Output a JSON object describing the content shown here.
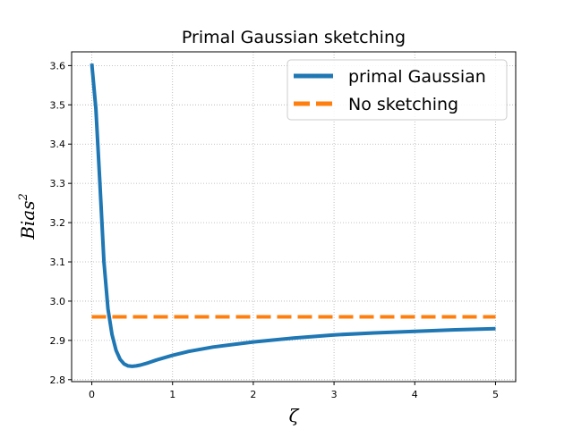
{
  "chart_data": {
    "type": "line",
    "title": "Primal Gaussian sketching",
    "xlabel": "ζ",
    "ylabel_base": "Bias",
    "ylabel_sup": "2",
    "xlim": [
      -0.25,
      5.25
    ],
    "ylim": [
      2.795,
      3.635
    ],
    "xticks": [
      0,
      1,
      2,
      3,
      4,
      5
    ],
    "xtick_labels": [
      "0",
      "1",
      "2",
      "3",
      "4",
      "5"
    ],
    "yticks": [
      2.8,
      2.9,
      3.0,
      3.1,
      3.2,
      3.3,
      3.4,
      3.5,
      3.6
    ],
    "ytick_labels": [
      "2.8",
      "2.9",
      "3.0",
      "3.1",
      "3.2",
      "3.3",
      "3.4",
      "3.5",
      "3.6"
    ],
    "grid": true,
    "legend_position": "top-right",
    "series": [
      {
        "name": "primal Gaussian",
        "color": "#1f77b4",
        "style": "solid",
        "x": [
          0.0,
          0.05,
          0.1,
          0.15,
          0.2,
          0.25,
          0.3,
          0.35,
          0.4,
          0.45,
          0.5,
          0.55,
          0.6,
          0.7,
          0.8,
          1.0,
          1.2,
          1.5,
          2.0,
          2.5,
          3.0,
          3.5,
          4.0,
          4.5,
          5.0
        ],
        "y": [
          3.605,
          3.49,
          3.3,
          3.1,
          2.98,
          2.915,
          2.875,
          2.852,
          2.84,
          2.835,
          2.834,
          2.835,
          2.837,
          2.843,
          2.85,
          2.862,
          2.872,
          2.883,
          2.896,
          2.906,
          2.914,
          2.919,
          2.923,
          2.927,
          2.93
        ]
      },
      {
        "name": "No sketching",
        "color": "#ff7f0e",
        "style": "dashed",
        "x": [
          0.0,
          5.0
        ],
        "y": [
          2.96,
          2.96
        ]
      }
    ]
  }
}
